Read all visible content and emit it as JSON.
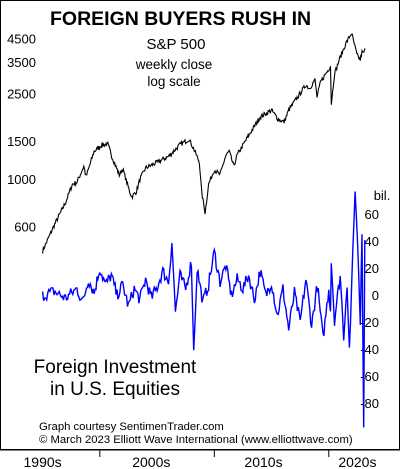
{
  "chart_data": {
    "type": "line",
    "title": "FOREIGN BUYERS RUSH IN",
    "top_panel": {
      "subtitle": "S&P 500",
      "note_1": "weekly close",
      "note_2": "log scale",
      "y_ticks": [
        "4500",
        "3500",
        "2500",
        "1500",
        "1000",
        "600"
      ],
      "y_tick_values": [
        4500,
        3500,
        2500,
        1500,
        1000,
        600
      ],
      "scale": "log",
      "ylim": [
        470,
        4950
      ],
      "series": [
        {
          "color": "#000000",
          "x": [
            1995.0,
            1996.0,
            1997.0,
            1997.6,
            1998.0,
            1998.6,
            1998.8,
            1999.5,
            2000.2,
            2000.7,
            2001.0,
            2001.7,
            2002.0,
            2002.6,
            2002.8,
            2003.2,
            2003.5,
            2004.0,
            2005.0,
            2006.0,
            2007.0,
            2007.8,
            2008.3,
            2008.7,
            2008.9,
            2009.2,
            2009.5,
            2010.0,
            2010.5,
            2011.0,
            2011.3,
            2011.7,
            2012.0,
            2013.0,
            2014.0,
            2015.0,
            2015.6,
            2016.1,
            2016.5,
            2017.0,
            2018.0,
            2018.3,
            2018.8,
            2018.97,
            2019.3,
            2019.9,
            2020.15,
            2020.22,
            2020.5,
            2021.0,
            2021.5,
            2021.99,
            2022.45,
            2022.75,
            2022.9,
            2023.0,
            2023.2
          ],
          "y": [
            465,
            610,
            780,
            950,
            970,
            1150,
            1030,
            1350,
            1450,
            1460,
            1300,
            1050,
            1120,
            880,
            830,
            880,
            1000,
            1130,
            1200,
            1280,
            1450,
            1540,
            1350,
            1200,
            870,
            700,
            950,
            1110,
            1050,
            1290,
            1350,
            1150,
            1300,
            1600,
            1950,
            2100,
            1900,
            1850,
            2100,
            2300,
            2750,
            2650,
            2900,
            2420,
            2850,
            3200,
            3380,
            2240,
            3100,
            3700,
            4300,
            4790,
            3800,
            3600,
            3900,
            3850,
            4050
          ]
        }
      ]
    },
    "bottom_panel": {
      "label_line_1": "Foreign Investment",
      "label_line_2": "in U.S. Equities",
      "unit": "bil.",
      "y_ticks": [
        "60",
        "40",
        "20",
        "0",
        "-20",
        "-40",
        "-60",
        "-80"
      ],
      "y_tick_values": [
        60,
        40,
        20,
        0,
        -20,
        -40,
        -60,
        -80
      ],
      "ylim": [
        -98,
        78
      ],
      "series": [
        {
          "color": "#0000ff",
          "x": [
            1995.0,
            1996.0,
            1997.0,
            1998.0,
            1998.5,
            1999.0,
            1999.5,
            2000.0,
            2000.5,
            2001.0,
            2001.5,
            2002.0,
            2002.5,
            2003.0,
            2003.5,
            2004.0,
            2004.5,
            2005.0,
            2005.5,
            2006.0,
            2006.3,
            2006.6,
            2007.0,
            2007.5,
            2008.0,
            2008.2,
            2008.5,
            2009.0,
            2009.5,
            2010.0,
            2010.5,
            2011.0,
            2011.5,
            2012.0,
            2012.5,
            2013.0,
            2013.5,
            2014.0,
            2014.5,
            2015.0,
            2015.5,
            2016.0,
            2016.5,
            2017.0,
            2017.5,
            2018.0,
            2018.5,
            2019.0,
            2019.5,
            2020.0,
            2020.15,
            2020.22,
            2020.5,
            2021.0,
            2021.3,
            2021.6,
            2021.8,
            2022.0,
            2022.3,
            2022.6,
            2022.75,
            2022.9,
            2023.05,
            2023.15
          ],
          "y": [
            0,
            3,
            -2,
            5,
            -5,
            12,
            2,
            20,
            8,
            15,
            0,
            8,
            -8,
            5,
            -3,
            12,
            -2,
            6,
            18,
            10,
            40,
            -12,
            15,
            5,
            25,
            -42,
            20,
            -5,
            8,
            32,
            10,
            22,
            0,
            12,
            5,
            15,
            -3,
            18,
            0,
            10,
            -15,
            5,
            -25,
            2,
            -20,
            12,
            -22,
            8,
            -32,
            5,
            -10,
            25,
            -18,
            15,
            -30,
            10,
            -40,
            5,
            80,
            20,
            -20,
            48,
            -95,
            41
          ]
        }
      ]
    },
    "x_ticks": [
      "1990s",
      "2000s",
      "2010s",
      "2020s"
    ],
    "x_tick_values": [
      1995,
      2004.5,
      2014.3,
      2022.5
    ],
    "xlim": [
      1994.6,
      2023.6
    ],
    "credit_line_1": "Graph courtesy SentimenTrader.com",
    "credit_line_2": "© March 2023 Elliott Wave International (www.elliottwave.com)"
  }
}
